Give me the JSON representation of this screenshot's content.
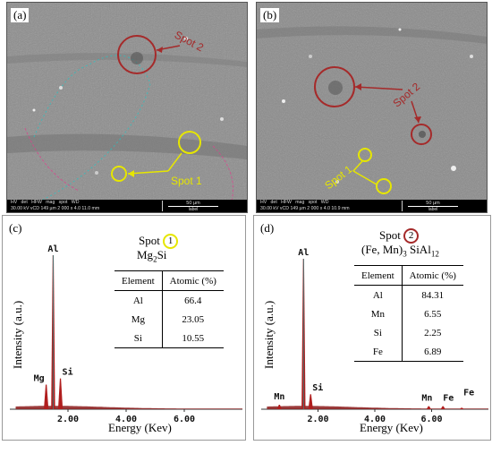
{
  "panel_a": {
    "label": "(a)",
    "spot2_label": "Spot 2",
    "spot1_label": "Spot 1",
    "infobar": {
      "headers": [
        "HV",
        "det",
        "HFW",
        "mag",
        "spot",
        "WD"
      ],
      "values": "30.00 kV vCD 149 µm 2 000 x 4.0 11.0 mm",
      "scale": "50 µm",
      "scale_sub": "label"
    },
    "colors": {
      "spot1": "#e6e600",
      "spot2": "#a52a2a"
    }
  },
  "panel_b": {
    "label": "(b)",
    "spot2_label": "Spot 2",
    "spot1_label": "Spot 1",
    "infobar": {
      "headers": [
        "HV",
        "det",
        "HFW",
        "mag",
        "spot",
        "WD"
      ],
      "values": "30.00 kV vCD 149 µm 2 000 x 4.0 10.9 mm",
      "scale": "50 µm",
      "scale_sub": "label"
    }
  },
  "panel_c": {
    "label": "(c)",
    "spot_word": "Spot",
    "spot_num": "1",
    "phase": "Mg2Si",
    "table_headers": [
      "Element",
      "Atomic (%)"
    ],
    "table_rows": [
      [
        "Al",
        "66.4"
      ],
      [
        "Mg",
        "23.05"
      ],
      [
        "Si",
        "10.55"
      ]
    ]
  },
  "panel_d": {
    "label": "(d)",
    "spot_word": "Spot",
    "spot_num": "2",
    "phase": "(Fe, Mn)3 SiAl12",
    "table_headers": [
      "Element",
      "Atomic (%)"
    ],
    "table_rows": [
      [
        "Al",
        "84.31"
      ],
      [
        "Mn",
        "6.55"
      ],
      [
        "Si",
        "2.25"
      ],
      [
        "Fe",
        "6.89"
      ]
    ]
  },
  "chart_data": [
    {
      "type": "line",
      "panel": "c",
      "xlabel": "Energy (Kev)",
      "ylabel": "Intensity (a.u.)",
      "xlim": [
        0,
        8.0
      ],
      "x_ticks": [
        "2.00",
        "4.00",
        "6.00"
      ],
      "peaks": [
        {
          "label": "Mg",
          "energy": 1.25,
          "intensity": 0.16
        },
        {
          "label": "Al",
          "energy": 1.49,
          "intensity": 1.0
        },
        {
          "label": "Si",
          "energy": 1.74,
          "intensity": 0.2
        }
      ]
    },
    {
      "type": "line",
      "panel": "d",
      "xlabel": "Energy (Kev)",
      "ylabel": "Intensity (a.u.)",
      "xlim": [
        0,
        8.0
      ],
      "x_ticks": [
        "2.00",
        "4.00",
        "6.00"
      ],
      "peaks": [
        {
          "label": "Mn",
          "energy": 0.64,
          "intensity": 0.03
        },
        {
          "label": "Al",
          "energy": 1.49,
          "intensity": 1.0
        },
        {
          "label": "Si",
          "energy": 1.74,
          "intensity": 0.1
        },
        {
          "label": "Mn",
          "energy": 5.9,
          "intensity": 0.02
        },
        {
          "label": "Fe",
          "energy": 6.4,
          "intensity": 0.02
        },
        {
          "label": "Fe",
          "energy": 7.06,
          "intensity": 0.01
        }
      ]
    }
  ]
}
